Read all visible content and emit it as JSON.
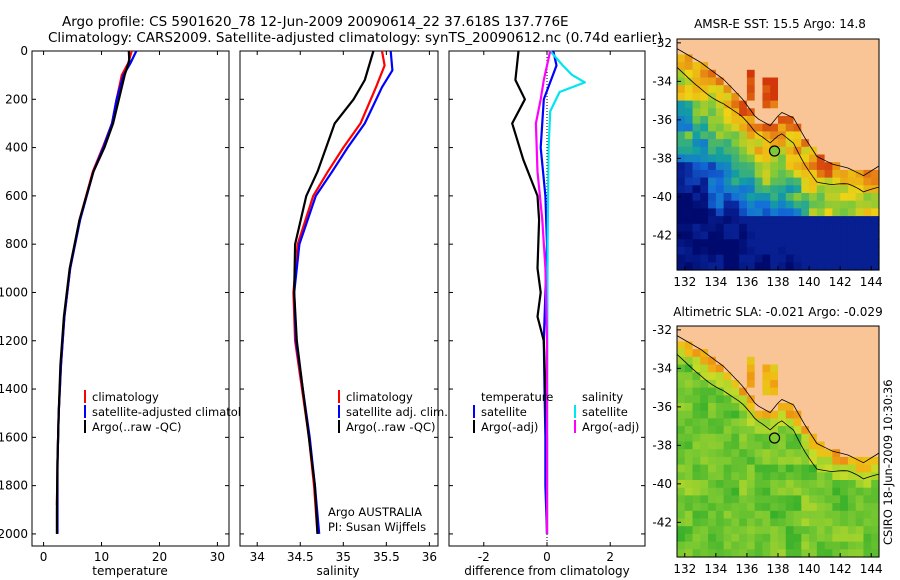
{
  "header": {
    "line1": "Argo profile: CS 5901620_78 12-Jun-2009 20090614_22 37.618S 137.776E",
    "line2": "Climatology: CARS2009. Satellite-adjusted climatology: synTS_20090612.nc (0.74d earlier)"
  },
  "footer_stamp": "CSIRO 18-Jun-2009 10:30:36",
  "colors": {
    "clim": "#ff0000",
    "sat": "#0000ff",
    "argo": "#000000",
    "sal_sat": "#00e5ee",
    "sal_argo": "#ff00ff",
    "land": "#f9c596",
    "coast": "#000000"
  },
  "chart_data": [
    {
      "type": "line",
      "id": "temperature",
      "title": "",
      "xlabel": "temperature",
      "ylabel": "",
      "xlim": [
        -2,
        32
      ],
      "ylim": [
        0,
        2050
      ],
      "yinvert": true,
      "xticks": [
        "0",
        "10",
        "20",
        "30"
      ],
      "xtick_values": [
        0,
        10,
        20,
        30
      ],
      "yticks": [
        "0",
        "200",
        "400",
        "600",
        "800",
        "1000",
        "1200",
        "1400",
        "1600",
        "1800",
        "2000"
      ],
      "ytick_values": [
        0,
        200,
        400,
        600,
        800,
        1000,
        1200,
        1400,
        1600,
        1800,
        2000
      ],
      "legend": [
        "climatology",
        "satellite-adjusted climatology",
        "Argo(..raw -QC)"
      ],
      "legend_position": "lower-left",
      "series": [
        {
          "name": "climatology",
          "color": "#ff0000",
          "x": [
            15.2,
            14.6,
            13.5,
            12.6,
            11.8,
            10.2,
            8.5,
            6.2,
            4.6,
            3.6,
            3.0,
            2.6,
            2.4,
            2.3
          ],
          "y": [
            0,
            50,
            100,
            200,
            300,
            400,
            500,
            700,
            900,
            1100,
            1300,
            1500,
            1700,
            1880
          ]
        },
        {
          "name": "satellite-adjusted climatology",
          "color": "#0000ff",
          "x": [
            16.0,
            15.0,
            13.8,
            12.6,
            11.8,
            10.3,
            8.6,
            6.3,
            4.6,
            3.6,
            3.0,
            2.6,
            2.4,
            2.4,
            2.4
          ],
          "y": [
            0,
            50,
            100,
            200,
            300,
            400,
            500,
            700,
            900,
            1100,
            1300,
            1500,
            1700,
            1900,
            2000
          ]
        },
        {
          "name": "Argo(..raw -QC)",
          "color": "#000000",
          "x": [
            14.7,
            14.8,
            14.0,
            13.0,
            12.0,
            10.5,
            8.6,
            6.2,
            4.5,
            3.5,
            2.9,
            2.6,
            2.4,
            2.3,
            2.3
          ],
          "y": [
            0,
            40,
            100,
            200,
            300,
            400,
            500,
            700,
            900,
            1100,
            1300,
            1500,
            1700,
            1900,
            2000
          ]
        }
      ]
    },
    {
      "type": "line",
      "id": "salinity",
      "title": "",
      "xlabel": "salinity",
      "ylabel": "",
      "xlim": [
        33.8,
        36.1
      ],
      "ylim": [
        0,
        2050
      ],
      "yinvert": true,
      "xticks": [
        "34",
        "34.5",
        "35",
        "35.5",
        "36"
      ],
      "xtick_values": [
        34,
        34.5,
        35,
        35.5,
        36
      ],
      "legend": [
        "climatology",
        "satellite adj. clim.",
        "Argo(..raw -QC)"
      ],
      "legend_position": "lower-right",
      "annotations": [
        "Argo AUSTRALIA",
        "PI: Susan Wijffels"
      ],
      "series": [
        {
          "name": "climatology",
          "color": "#ff0000",
          "x": [
            35.45,
            35.48,
            35.38,
            35.2,
            35.0,
            34.82,
            34.65,
            34.47,
            34.42,
            34.44,
            34.52,
            34.6,
            34.66,
            34.7
          ],
          "y": [
            0,
            60,
            150,
            300,
            400,
            500,
            600,
            800,
            1000,
            1200,
            1400,
            1600,
            1800,
            2000
          ]
        },
        {
          "name": "satellite adj. clim.",
          "color": "#0000ff",
          "x": [
            35.55,
            35.57,
            35.45,
            35.25,
            35.05,
            34.87,
            34.68,
            34.49,
            34.43,
            34.45,
            34.53,
            34.61,
            34.67,
            34.72
          ],
          "y": [
            0,
            80,
            150,
            300,
            400,
            500,
            600,
            800,
            1000,
            1200,
            1400,
            1600,
            1800,
            2000
          ]
        },
        {
          "name": "Argo(..raw -QC)",
          "color": "#000000",
          "x": [
            35.35,
            35.25,
            35.12,
            34.9,
            34.8,
            34.7,
            34.57,
            34.44,
            34.43,
            34.46,
            34.53,
            34.6,
            34.67,
            34.7
          ],
          "y": [
            0,
            120,
            200,
            300,
            400,
            500,
            600,
            800,
            1000,
            1200,
            1400,
            1600,
            1800,
            2000
          ]
        }
      ]
    },
    {
      "type": "line",
      "id": "difference",
      "title": "",
      "xlabel": "difference from climatology",
      "ylabel": "",
      "xlim": [
        -3.1,
        3.1
      ],
      "ylim": [
        0,
        2050
      ],
      "yinvert": true,
      "xticks": [
        "-2",
        "0",
        "2"
      ],
      "xtick_values": [
        -2,
        0,
        2
      ],
      "legend": [
        "temperature",
        "satellite",
        "Argo(-adj)",
        "salinity",
        "satellite",
        "Argo(-adj)"
      ],
      "legend_position": "lower-center",
      "series": [
        {
          "name": "temperature satellite",
          "color": "#0000ff",
          "x": [
            0.2,
            0.3,
            -0.1,
            -0.2,
            -0.05,
            0.0,
            -0.05,
            -0.1,
            -0.08,
            -0.05,
            -0.05,
            0.0
          ],
          "y": [
            0,
            60,
            200,
            400,
            600,
            800,
            1000,
            1200,
            1400,
            1600,
            1800,
            2000
          ]
        },
        {
          "name": "temperature Argo(-adj)",
          "color": "#000000",
          "x": [
            -0.9,
            -1.0,
            -0.7,
            -1.1,
            -0.75,
            -0.3,
            -0.25,
            -0.3,
            -0.2,
            -0.3,
            -0.1,
            -0.05,
            0.0,
            0.0
          ],
          "y": [
            0,
            120,
            200,
            300,
            450,
            600,
            700,
            900,
            1000,
            1100,
            1200,
            1400,
            1600,
            2000
          ]
        },
        {
          "name": "salinity satellite",
          "color": "#00e5ee",
          "x": [
            0.1,
            0.5,
            0.8,
            1.2,
            0.4,
            0.1,
            0.05,
            0.02,
            0.01,
            0.0
          ],
          "y": [
            0,
            60,
            100,
            130,
            170,
            250,
            400,
            800,
            1200,
            2000
          ]
        },
        {
          "name": "salinity Argo(-adj)",
          "color": "#ff00ff",
          "x": [
            0.1,
            -0.1,
            -0.2,
            -0.35,
            -0.3,
            -0.15,
            -0.05,
            0.0,
            0.0
          ],
          "y": [
            0,
            120,
            200,
            300,
            500,
            700,
            900,
            1200,
            2000
          ]
        }
      ]
    },
    {
      "type": "heatmap",
      "id": "sst_map",
      "title": "AMSR-E SST: 15.5 Argo: 14.8",
      "xlabel": "",
      "ylabel": "",
      "xlim": [
        131.5,
        144.5
      ],
      "ylim": [
        -43.8,
        -31.8
      ],
      "xticks": [
        "132",
        "134",
        "136",
        "138",
        "140",
        "142",
        "144"
      ],
      "yticks": [
        "-32",
        "-34",
        "-36",
        "-38",
        "-40",
        "-42"
      ],
      "marker": {
        "lon": 137.776,
        "lat": -37.618
      }
    },
    {
      "type": "heatmap",
      "id": "sla_map",
      "title": "Altimetric SLA: -0.021 Argo: -0.029",
      "xlabel": "",
      "ylabel": "",
      "xlim": [
        131.5,
        144.5
      ],
      "ylim": [
        -43.8,
        -31.8
      ],
      "xticks": [
        "132",
        "134",
        "136",
        "138",
        "140",
        "142",
        "144"
      ],
      "yticks": [
        "-32",
        "-34",
        "-36",
        "-38",
        "-40",
        "-42"
      ],
      "marker": {
        "lon": 137.776,
        "lat": -37.618
      }
    }
  ]
}
